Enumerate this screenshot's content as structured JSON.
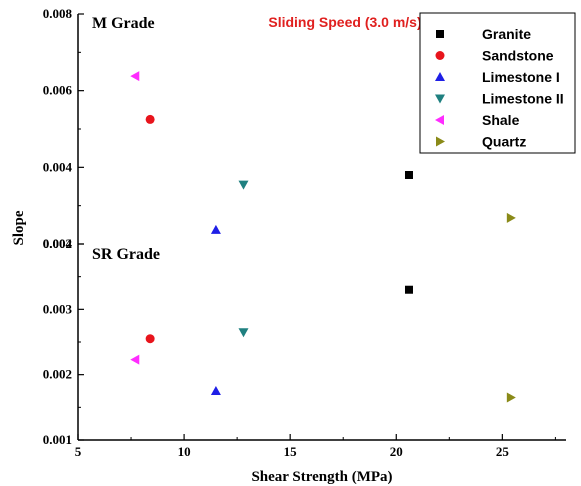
{
  "chart_data": [
    {
      "type": "scatter",
      "panel_label": "M Grade",
      "annotation": "Sliding Speed (3.0 m/s)",
      "annotation_color": "#e0201f",
      "ylim": [
        0.002,
        0.008
      ],
      "yticks": [
        "0.002",
        "0.004",
        "0.006",
        "0.008"
      ],
      "series": [
        {
          "name": "Granite",
          "marker": "square",
          "color": "#000000",
          "points": [
            {
              "x": 20.6,
              "y": 0.0038
            }
          ]
        },
        {
          "name": "Sandstone",
          "marker": "circle",
          "color": "#e8141c",
          "points": [
            {
              "x": 8.4,
              "y": 0.00525
            }
          ]
        },
        {
          "name": "Limestone I",
          "marker": "triangle-up",
          "color": "#1f1fe6",
          "points": [
            {
              "x": 11.5,
              "y": 0.00237
            }
          ]
        },
        {
          "name": "Limestone II",
          "marker": "triangle-down",
          "color": "#1f8080",
          "points": [
            {
              "x": 12.8,
              "y": 0.00355
            }
          ]
        },
        {
          "name": "Shale",
          "marker": "triangle-left",
          "color": "#ff2cff",
          "points": [
            {
              "x": 7.7,
              "y": 0.00638
            }
          ]
        },
        {
          "name": "Quartz",
          "marker": "triangle-right",
          "color": "#8a8a18",
          "points": [
            {
              "x": 25.4,
              "y": 0.00268
            }
          ]
        }
      ]
    },
    {
      "type": "scatter",
      "panel_label": "SR Grade",
      "ylim": [
        0.001,
        0.004
      ],
      "yticks": [
        "0.001",
        "0.002",
        "0.003",
        "0.004"
      ],
      "series": [
        {
          "name": "Granite",
          "marker": "square",
          "color": "#000000",
          "points": [
            {
              "x": 20.6,
              "y": 0.0033
            }
          ]
        },
        {
          "name": "Sandstone",
          "marker": "circle",
          "color": "#e8141c",
          "points": [
            {
              "x": 8.4,
              "y": 0.00255
            }
          ]
        },
        {
          "name": "Limestone I",
          "marker": "triangle-up",
          "color": "#1f1fe6",
          "points": [
            {
              "x": 11.5,
              "y": 0.00175
            }
          ]
        },
        {
          "name": "Limestone II",
          "marker": "triangle-down",
          "color": "#1f8080",
          "points": [
            {
              "x": 12.8,
              "y": 0.00265
            }
          ]
        },
        {
          "name": "Shale",
          "marker": "triangle-left",
          "color": "#ff2cff",
          "points": [
            {
              "x": 7.7,
              "y": 0.00223
            }
          ]
        },
        {
          "name": "Quartz",
          "marker": "triangle-right",
          "color": "#8a8a18",
          "points": [
            {
              "x": 25.4,
              "y": 0.00165
            }
          ]
        }
      ]
    }
  ],
  "xaxis": {
    "label": "Shear Strength (MPa)",
    "xlim": [
      5,
      28
    ],
    "ticks": [
      "5",
      "10",
      "15",
      "20",
      "25"
    ]
  },
  "yaxis": {
    "label": "Slope"
  },
  "legend": {
    "placement": "top-right",
    "entries": [
      {
        "name": "Granite",
        "marker": "square",
        "color": "#000000"
      },
      {
        "name": "Sandstone",
        "marker": "circle",
        "color": "#e8141c"
      },
      {
        "name": "Limestone I",
        "marker": "triangle-up",
        "color": "#1f1fe6"
      },
      {
        "name": "Limestone II",
        "marker": "triangle-down",
        "color": "#1f8080"
      },
      {
        "name": "Shale",
        "marker": "triangle-left",
        "color": "#ff2cff"
      },
      {
        "name": "Quartz",
        "marker": "triangle-right",
        "color": "#8a8a18"
      }
    ]
  }
}
